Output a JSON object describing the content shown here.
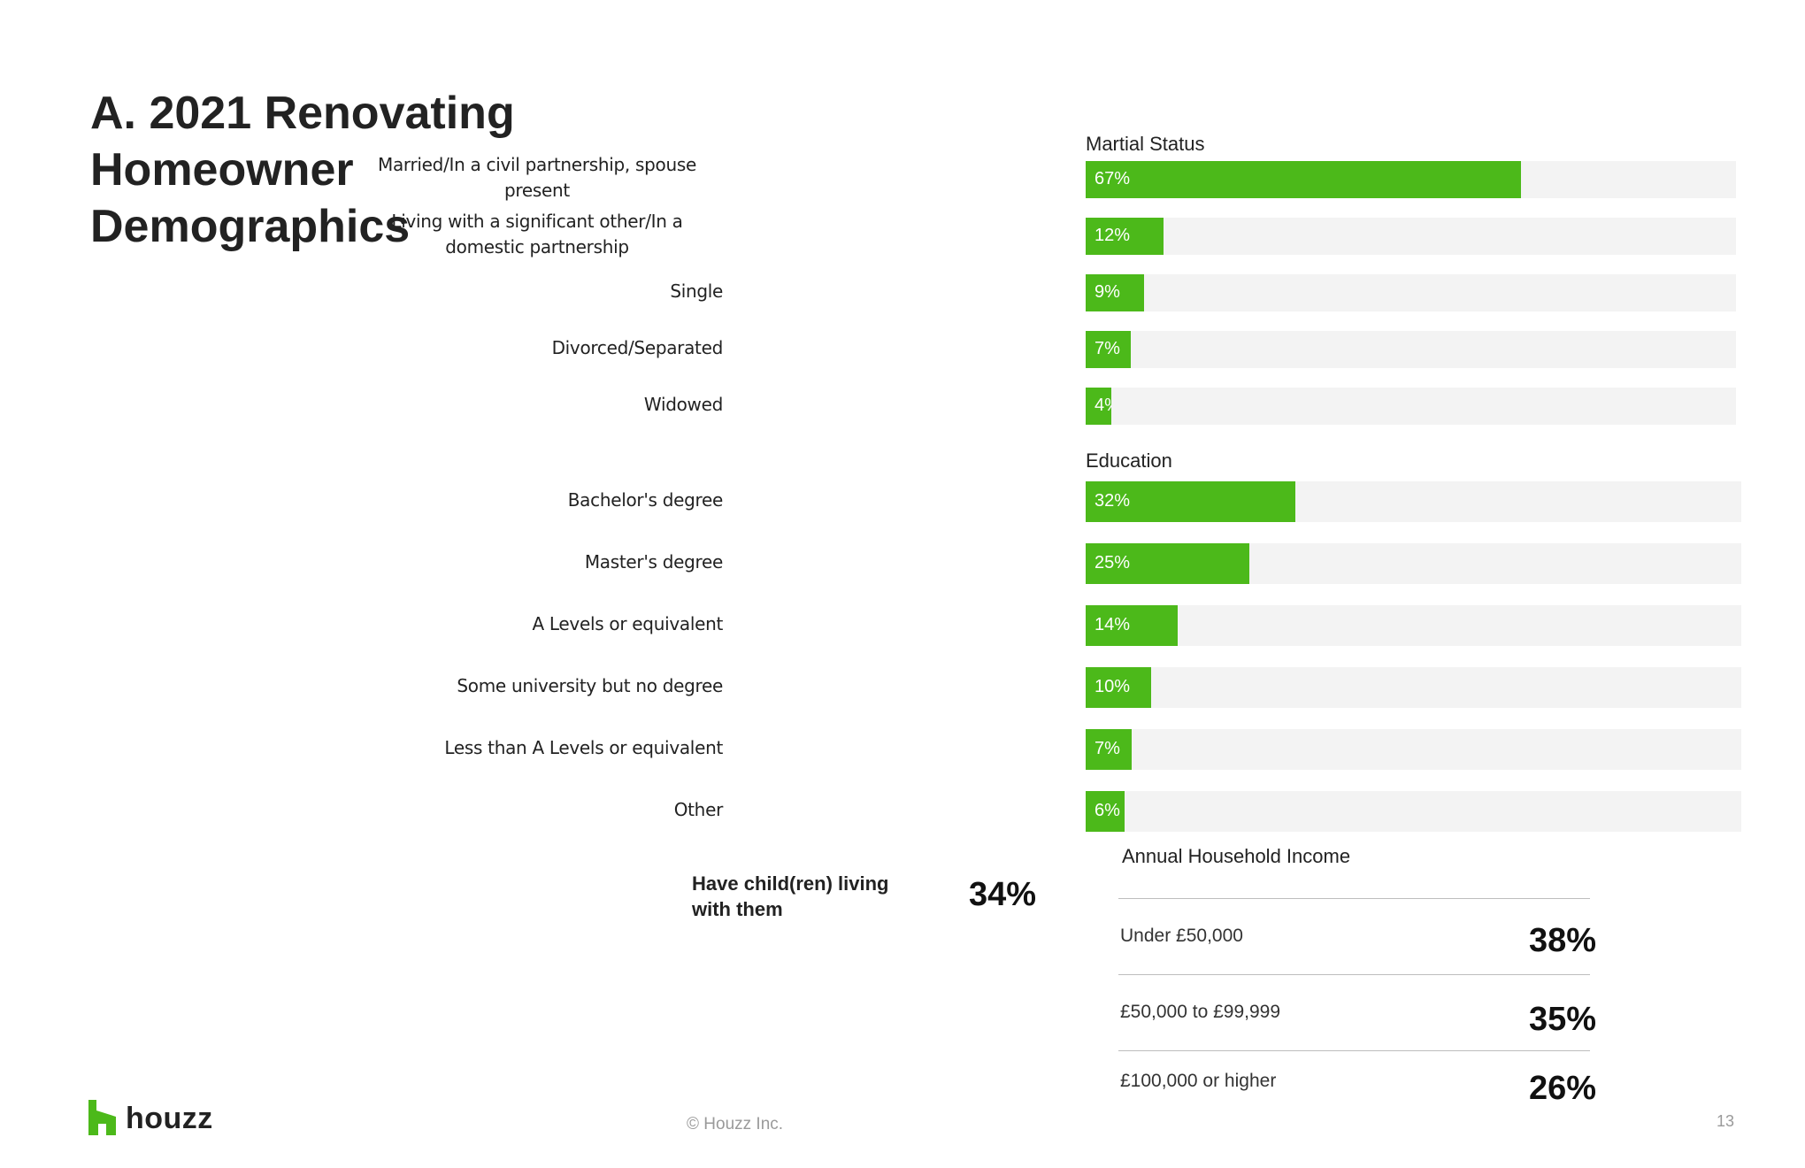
{
  "title": "A. 2021 Renovating Homeowner Demographics",
  "chart_data": [
    {
      "type": "bar",
      "title": "Martial Status",
      "categories": [
        "Married/In a civil partnership, spouse present",
        "Living with a significant other/In a domestic partnership",
        "Single",
        "Divorced/Separated",
        "Widowed"
      ],
      "values": [
        67,
        12,
        9,
        7,
        4
      ],
      "value_labels": [
        "67%",
        "12%",
        "9%",
        "7%",
        "4%"
      ],
      "xlim": [
        0,
        100
      ],
      "orientation": "horizontal",
      "bar_color": "#4cb91a",
      "track_color": "#f3f3f3"
    },
    {
      "type": "bar",
      "title": "Education",
      "categories": [
        "Bachelor's degree",
        "Master's degree",
        "A Levels or equivalent",
        "Some university but no degree",
        "Less than A Levels or equivalent",
        "Other"
      ],
      "values": [
        32,
        25,
        14,
        10,
        7,
        6
      ],
      "value_labels": [
        "32%",
        "25%",
        "14%",
        "10%",
        "7%",
        "6%"
      ],
      "xlim": [
        0,
        100
      ],
      "orientation": "horizontal",
      "bar_color": "#4cb91a",
      "track_color": "#f3f3f3"
    }
  ],
  "children": {
    "label": "Have child(ren) living with them",
    "value": "34%"
  },
  "income": {
    "title": "Annual Household Income",
    "rows": [
      {
        "label": "Under £50,000",
        "value": "38%"
      },
      {
        "label": "£50,000 to £99,999",
        "value": "35%"
      },
      {
        "label": "£100,000 or higher",
        "value": "26%"
      }
    ]
  },
  "footer": {
    "brand": "houzz",
    "copyright": "© Houzz Inc.",
    "page_number": "13"
  },
  "colors": {
    "accent": "#4cb91a",
    "text": "#222222",
    "muted": "#9a9a9a"
  }
}
